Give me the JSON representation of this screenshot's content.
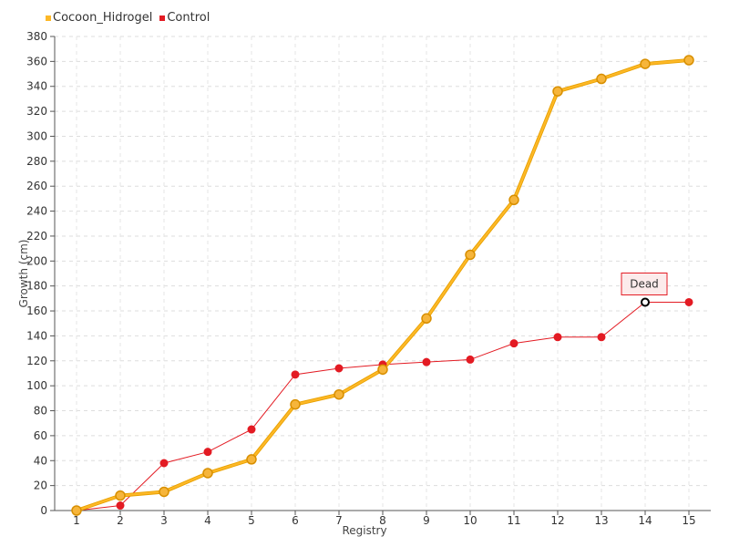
{
  "legend": {
    "items": [
      {
        "label": "Cocoon_Hidrogel",
        "color": "#FDB827"
      },
      {
        "label": "Control",
        "color": "#E31B23"
      }
    ]
  },
  "chart_data": {
    "type": "line",
    "title": "",
    "xlabel": "Registry",
    "ylabel": "Growth (cm)",
    "categories": [
      "1",
      "2",
      "3",
      "4",
      "5",
      "6",
      "7",
      "8",
      "9",
      "10",
      "11",
      "12",
      "13",
      "14",
      "15"
    ],
    "ylim": [
      0,
      380
    ],
    "ytick_step": 20,
    "grid": true,
    "legend_position": "top-left",
    "series": [
      {
        "name": "Cocoon_Hidrogel",
        "color": "#FDB827",
        "values": [
          0,
          12,
          15,
          30,
          41,
          85,
          93,
          113,
          154,
          205,
          249,
          336,
          346,
          358,
          361
        ]
      },
      {
        "name": "Control",
        "color": "#E31B23",
        "values": [
          0,
          4,
          38,
          47,
          65,
          109,
          114,
          117,
          119,
          121,
          134,
          139,
          139,
          167,
          167
        ]
      }
    ],
    "annotations": [
      {
        "text": "Dead",
        "series": "Control",
        "category": "14",
        "value": 167
      }
    ]
  }
}
